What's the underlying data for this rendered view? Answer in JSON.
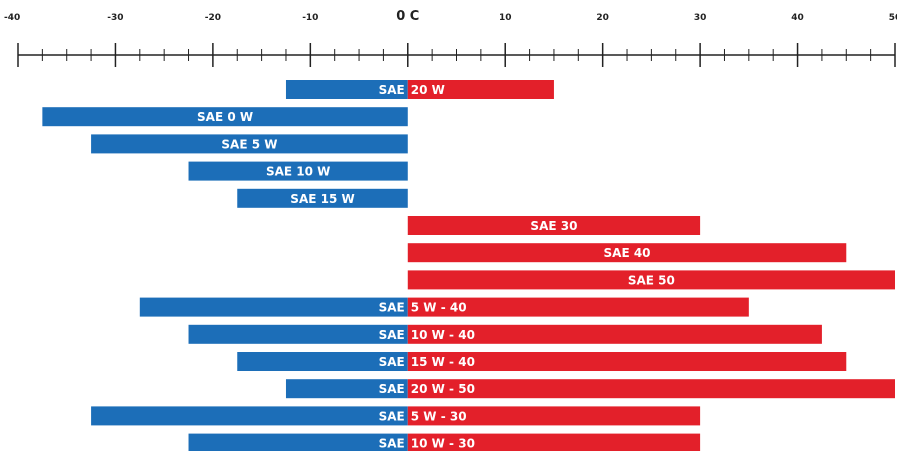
{
  "chart_data": {
    "type": "bar",
    "orientation": "horizontal",
    "xlim": [
      -40,
      50
    ],
    "x_ticks": [
      {
        "value": -40,
        "label": "-40"
      },
      {
        "value": -30,
        "label": "-30"
      },
      {
        "value": -20,
        "label": "-20"
      },
      {
        "value": -10,
        "label": "-10"
      },
      {
        "value": 0,
        "label": "0 C"
      },
      {
        "value": 10,
        "label": "10"
      },
      {
        "value": 20,
        "label": "20"
      },
      {
        "value": 30,
        "label": "30"
      },
      {
        "value": 40,
        "label": "40"
      },
      {
        "value": 50,
        "label": "50"
      }
    ],
    "minor_tick_step": 2.5,
    "colors": {
      "cold": "#1c6eb8",
      "hot": "#e3202a",
      "axis": "#222222"
    },
    "bars": [
      {
        "label": "20 W",
        "min": -12.5,
        "max": 15,
        "prefix": "SAE"
      },
      {
        "label": "SAE 0 W",
        "min": -37.5,
        "max": 0
      },
      {
        "label": "SAE 5 W",
        "min": -32.5,
        "max": 0
      },
      {
        "label": "SAE 10 W",
        "min": -22.5,
        "max": 0
      },
      {
        "label": "SAE 15 W",
        "min": -17.5,
        "max": 0
      },
      {
        "label": "SAE 30",
        "min": 0,
        "max": 30
      },
      {
        "label": "SAE 40",
        "min": 0,
        "max": 45
      },
      {
        "label": "SAE 50",
        "min": 0,
        "max": 50
      },
      {
        "label": "5 W - 40",
        "min": -27.5,
        "max": 35,
        "prefix": "SAE"
      },
      {
        "label": "10 W - 40",
        "min": -22.5,
        "max": 42.5,
        "prefix": "SAE"
      },
      {
        "label": "15 W - 40",
        "min": -17.5,
        "max": 45,
        "prefix": "SAE"
      },
      {
        "label": "20 W - 50",
        "min": -12.5,
        "max": 50,
        "prefix": "SAE"
      },
      {
        "label": "5 W - 30",
        "min": -32.5,
        "max": 30,
        "prefix": "SAE"
      },
      {
        "label": "10 W - 30",
        "min": -22.5,
        "max": 30,
        "prefix": "SAE"
      }
    ]
  }
}
